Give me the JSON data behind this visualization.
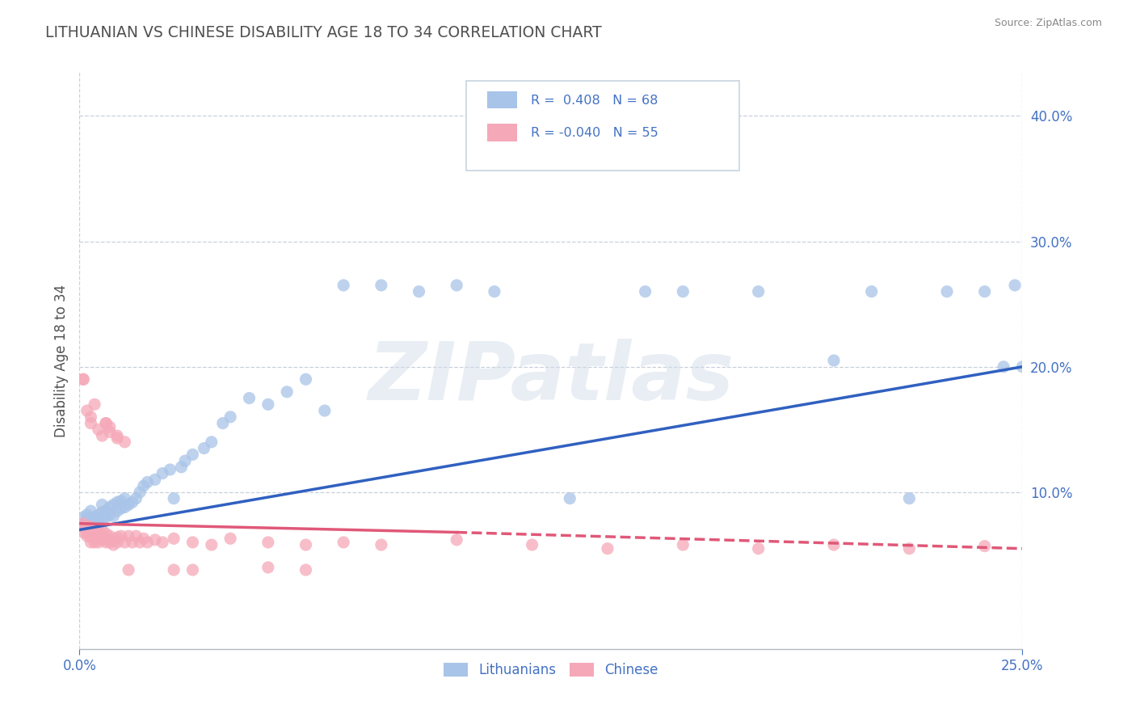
{
  "title": "LITHUANIAN VS CHINESE DISABILITY AGE 18 TO 34 CORRELATION CHART",
  "source": "Source: ZipAtlas.com",
  "ylabel": "Disability Age 18 to 34",
  "xlim": [
    0.0,
    0.25
  ],
  "ylim": [
    -0.025,
    0.435
  ],
  "xticks": [
    0.0,
    0.25
  ],
  "xticklabels": [
    "0.0%",
    "25.0%"
  ],
  "yticks": [
    0.1,
    0.2,
    0.3,
    0.4
  ],
  "yticklabels": [
    "10.0%",
    "20.0%",
    "30.0%",
    "40.0%"
  ],
  "blue_R": 0.408,
  "blue_N": 68,
  "pink_R": -0.04,
  "pink_N": 55,
  "blue_color": "#A8C4E8",
  "pink_color": "#F5A8B8",
  "blue_line_color": "#3060C0",
  "pink_line_color": "#E05878",
  "legend_text_color": "#4472C4",
  "title_color": "#505050",
  "axis_color": "#4472C4",
  "grid_color": "#C8D0DC",
  "background_color": "#FFFFFF",
  "watermark_text": "ZIPatlas",
  "blue_line_x0": 0.0,
  "blue_line_y0": 0.07,
  "blue_line_x1": 0.25,
  "blue_line_y1": 0.2,
  "pink_line_x0": 0.0,
  "pink_line_y0": 0.075,
  "pink_line_solid_x1": 0.1,
  "pink_line_solid_y1": 0.068,
  "pink_line_x1": 0.25,
  "pink_line_y1": 0.055,
  "blue_scatter_x": [
    0.001,
    0.001,
    0.001,
    0.002,
    0.002,
    0.002,
    0.003,
    0.003,
    0.003,
    0.004,
    0.004,
    0.005,
    0.005,
    0.005,
    0.006,
    0.006,
    0.006,
    0.007,
    0.007,
    0.008,
    0.008,
    0.009,
    0.009,
    0.01,
    0.01,
    0.011,
    0.011,
    0.012,
    0.012,
    0.013,
    0.014,
    0.015,
    0.016,
    0.017,
    0.018,
    0.02,
    0.022,
    0.024,
    0.025,
    0.027,
    0.028,
    0.03,
    0.033,
    0.035,
    0.038,
    0.04,
    0.045,
    0.05,
    0.055,
    0.06,
    0.065,
    0.07,
    0.08,
    0.09,
    0.1,
    0.11,
    0.13,
    0.15,
    0.16,
    0.18,
    0.2,
    0.21,
    0.22,
    0.23,
    0.24,
    0.245,
    0.248,
    0.25
  ],
  "blue_scatter_y": [
    0.075,
    0.08,
    0.072,
    0.078,
    0.082,
    0.07,
    0.079,
    0.074,
    0.085,
    0.076,
    0.08,
    0.073,
    0.082,
    0.078,
    0.084,
    0.079,
    0.09,
    0.08,
    0.085,
    0.082,
    0.088,
    0.081,
    0.09,
    0.085,
    0.092,
    0.087,
    0.093,
    0.088,
    0.095,
    0.09,
    0.092,
    0.095,
    0.1,
    0.105,
    0.108,
    0.11,
    0.115,
    0.118,
    0.095,
    0.12,
    0.125,
    0.13,
    0.135,
    0.14,
    0.155,
    0.16,
    0.175,
    0.17,
    0.18,
    0.19,
    0.165,
    0.265,
    0.265,
    0.26,
    0.265,
    0.26,
    0.095,
    0.26,
    0.26,
    0.26,
    0.205,
    0.26,
    0.095,
    0.26,
    0.26,
    0.2,
    0.265,
    0.2
  ],
  "pink_scatter_x": [
    0.001,
    0.001,
    0.001,
    0.002,
    0.002,
    0.002,
    0.002,
    0.003,
    0.003,
    0.003,
    0.003,
    0.004,
    0.004,
    0.004,
    0.005,
    0.005,
    0.005,
    0.006,
    0.006,
    0.006,
    0.007,
    0.007,
    0.007,
    0.008,
    0.008,
    0.009,
    0.009,
    0.01,
    0.01,
    0.011,
    0.012,
    0.013,
    0.014,
    0.015,
    0.016,
    0.017,
    0.018,
    0.02,
    0.022,
    0.025,
    0.03,
    0.035,
    0.04,
    0.05,
    0.06,
    0.07,
    0.08,
    0.1,
    0.12,
    0.14,
    0.16,
    0.18,
    0.2,
    0.22,
    0.24
  ],
  "pink_scatter_y": [
    0.075,
    0.072,
    0.068,
    0.073,
    0.07,
    0.067,
    0.065,
    0.072,
    0.068,
    0.064,
    0.06,
    0.068,
    0.064,
    0.06,
    0.068,
    0.064,
    0.06,
    0.065,
    0.062,
    0.07,
    0.063,
    0.06,
    0.067,
    0.06,
    0.065,
    0.062,
    0.058,
    0.064,
    0.06,
    0.065,
    0.06,
    0.065,
    0.06,
    0.065,
    0.06,
    0.063,
    0.06,
    0.062,
    0.06,
    0.063,
    0.06,
    0.058,
    0.063,
    0.06,
    0.058,
    0.06,
    0.058,
    0.062,
    0.058,
    0.055,
    0.058,
    0.055,
    0.058,
    0.055,
    0.057
  ],
  "pink_outlier_x": [
    0.001,
    0.001,
    0.002,
    0.003,
    0.003,
    0.004,
    0.005,
    0.006,
    0.007,
    0.007,
    0.008,
    0.008,
    0.01,
    0.01,
    0.012,
    0.013,
    0.025,
    0.03,
    0.05,
    0.06
  ],
  "pink_outlier_y": [
    0.19,
    0.19,
    0.165,
    0.155,
    0.16,
    0.17,
    0.15,
    0.145,
    0.155,
    0.155,
    0.148,
    0.152,
    0.145,
    0.143,
    0.14,
    0.038,
    0.038,
    0.038,
    0.04,
    0.038
  ]
}
